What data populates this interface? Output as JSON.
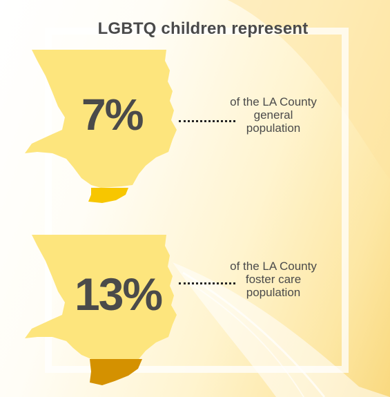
{
  "headline": "LGBTQ children represent",
  "stats": [
    {
      "value": "7%",
      "line1": "of the LA County",
      "line2": "general",
      "line3": "population",
      "highlight_color": "#f7c600"
    },
    {
      "value": "13%",
      "line1": "of the LA County",
      "line2": "foster care",
      "line3": "population",
      "highlight_color": "#d49100"
    }
  ],
  "colors": {
    "map_fill": "#fde57d",
    "text": "#4a4a4a",
    "background_accent": "#f9d97f"
  }
}
